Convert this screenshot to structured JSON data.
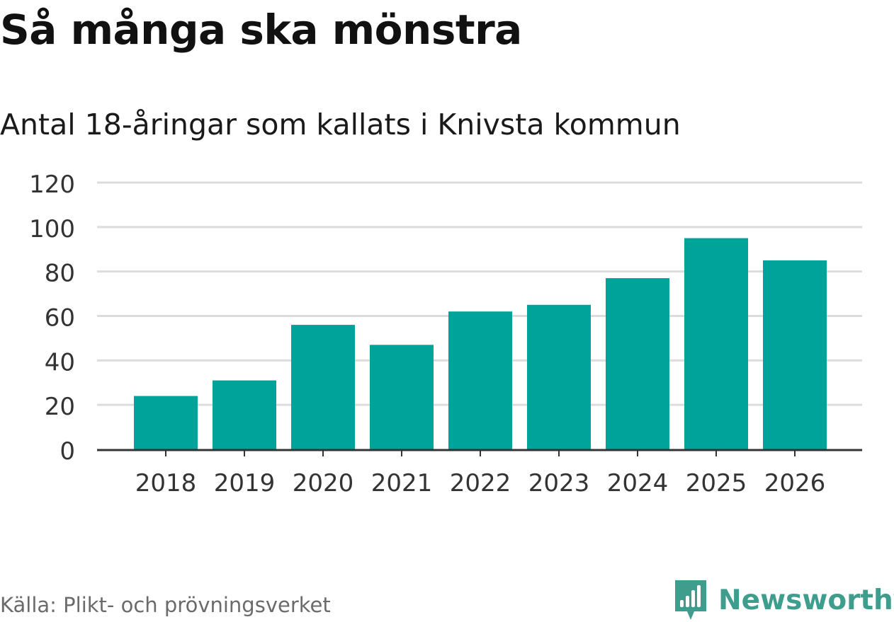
{
  "title": "Så många ska mönstra",
  "subtitle": "Antal 18-åringar som kallats i Knivsta kommun",
  "source": "Källa: Plikt- och prövningsverket",
  "logo": {
    "text": "Newsworthy",
    "icon": "newsworthy-bar-chart-icon"
  },
  "colors": {
    "bar": "#00a39a",
    "grid": "#dcdcdc",
    "axis": "#333333",
    "logo": "#3f9d8e",
    "source_text": "#6b6b6b"
  },
  "chart_data": {
    "type": "bar",
    "title": "Så många ska mönstra",
    "subtitle": "Antal 18-åringar som kallats i Knivsta kommun",
    "xlabel": "",
    "ylabel": "",
    "categories": [
      "2018",
      "2019",
      "2020",
      "2021",
      "2022",
      "2023",
      "2024",
      "2025",
      "2026"
    ],
    "values": [
      24,
      31,
      56,
      47,
      62,
      65,
      77,
      95,
      85
    ],
    "ylim": [
      0,
      120
    ],
    "yticks": [
      0,
      20,
      40,
      60,
      80,
      100,
      120
    ],
    "grid": true,
    "legend": "none"
  }
}
